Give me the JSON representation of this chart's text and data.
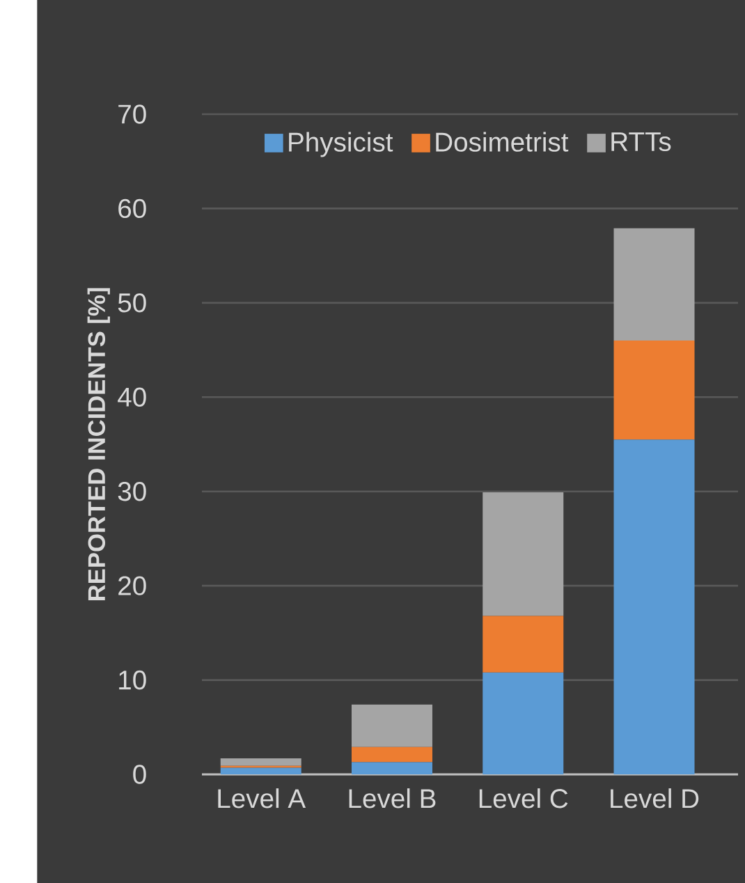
{
  "chart_data": {
    "type": "bar",
    "stacked": true,
    "ylabel": "REPORTED INCIDENTS [%]",
    "categories": [
      "Level A",
      "Level B",
      "Level C",
      "Level D"
    ],
    "series": [
      {
        "name": "Physicist",
        "color": "#5b9bd5",
        "values": [
          0.7,
          1.3,
          10.8,
          35.5
        ]
      },
      {
        "name": "Dosimetrist",
        "color": "#ed7d31",
        "values": [
          0.2,
          1.6,
          6.0,
          10.5
        ]
      },
      {
        "name": "RTTs",
        "color": "#a5a5a5",
        "values": [
          0.8,
          4.5,
          13.1,
          11.9
        ]
      }
    ],
    "ylim": [
      0,
      70
    ],
    "yticks": [
      0,
      10,
      20,
      30,
      40,
      50,
      60,
      70
    ],
    "grid": "y",
    "legend": "top"
  }
}
